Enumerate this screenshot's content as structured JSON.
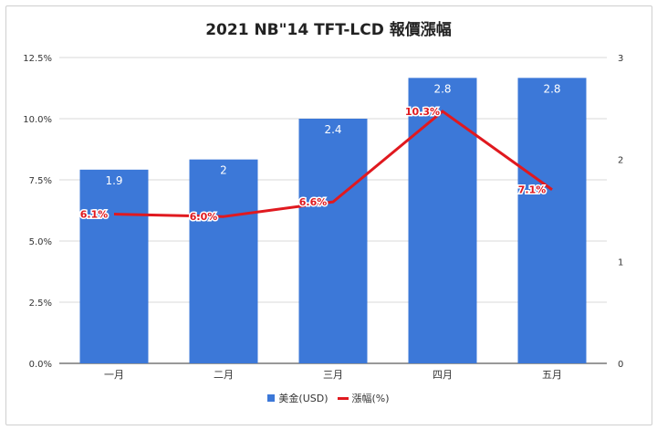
{
  "title": "2021 NB\"14 TFT-LCD 報價漲幅",
  "chart_data": {
    "type": "bar",
    "title": "2021 NB\"14 TFT-LCD 報價漲幅",
    "categories": [
      "一月",
      "二月",
      "三月",
      "四月",
      "五月"
    ],
    "series": [
      {
        "name": "美金(USD)",
        "type": "bar",
        "axis": "right",
        "color": "#3c78d8",
        "values": [
          1.9,
          2,
          2.4,
          2.8,
          2.8
        ],
        "labels": [
          "1.9",
          "2",
          "2.4",
          "2.8",
          "2.8"
        ]
      },
      {
        "name": "漲幅(%)",
        "type": "line",
        "axis": "left",
        "color": "#e0191f",
        "values": [
          6.1,
          6.0,
          6.6,
          10.3,
          7.1
        ],
        "labels": [
          "6.1%",
          "6.0%",
          "6.6%",
          "10.3%",
          "7.1%"
        ]
      }
    ],
    "left_axis": {
      "ylim": [
        0,
        12.5
      ],
      "ticks": [
        "0.0%",
        "2.5%",
        "5.0%",
        "7.5%",
        "10.0%",
        "12.5%"
      ]
    },
    "right_axis": {
      "ylim": [
        0,
        3
      ],
      "ticks": [
        "0",
        "1",
        "2",
        "3"
      ]
    },
    "grid": true,
    "legend": "bottom"
  },
  "legend": [
    {
      "label": "美金(USD)",
      "color": "#3c78d8",
      "kind": "box"
    },
    {
      "label": "漲幅(%)",
      "color": "#e0191f",
      "kind": "line"
    }
  ]
}
